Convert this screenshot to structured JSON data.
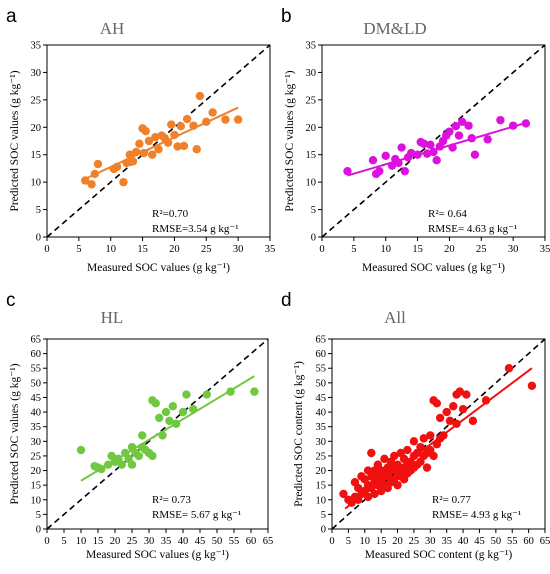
{
  "chart_data": [
    {
      "type": "scatter",
      "panel_letter": "a",
      "title": "AH",
      "xlabel": "Measured SOC values (g kg⁻¹)",
      "ylabel": "Predicted SOC values (g kg⁻¹)",
      "xlim": [
        0,
        35
      ],
      "ylim": [
        0,
        35
      ],
      "xticks": [
        "0",
        "5",
        "10",
        "15",
        "20",
        "25",
        "30",
        "35"
      ],
      "yticks": [
        "0",
        "5",
        "10",
        "15",
        "20",
        "25",
        "30",
        "35"
      ],
      "r2_text": "R²=0.70",
      "rmse_text": "RMSE=3.54 g kg⁻¹",
      "color": "#f0802a",
      "one_to_one": true,
      "fit_line": {
        "x": [
          6,
          30
        ],
        "y": [
          10.6,
          23.6
        ]
      },
      "points": [
        [
          6,
          10.3
        ],
        [
          7,
          9.6
        ],
        [
          7.5,
          11.5
        ],
        [
          8,
          13.3
        ],
        [
          10.5,
          12.4
        ],
        [
          11,
          12.8
        ],
        [
          12,
          10.0
        ],
        [
          12.5,
          13.5
        ],
        [
          13,
          15.0
        ],
        [
          13.5,
          13.8
        ],
        [
          14,
          15.5
        ],
        [
          14.5,
          17.0
        ],
        [
          15,
          19.8
        ],
        [
          15.2,
          15.3
        ],
        [
          15.5,
          19.3
        ],
        [
          16,
          17.5
        ],
        [
          16.5,
          15.0
        ],
        [
          17,
          18.2
        ],
        [
          17.5,
          16.0
        ],
        [
          18,
          18.5
        ],
        [
          18.5,
          18.0
        ],
        [
          19,
          17.2
        ],
        [
          19.5,
          20.5
        ],
        [
          20,
          18.6
        ],
        [
          20.5,
          16.5
        ],
        [
          21,
          20.2
        ],
        [
          21.5,
          16.6
        ],
        [
          22,
          21.5
        ],
        [
          23,
          20.3
        ],
        [
          23.5,
          16.0
        ],
        [
          24,
          25.7
        ],
        [
          25,
          21.0
        ],
        [
          26,
          22.7
        ],
        [
          28,
          21.4
        ],
        [
          30,
          21.4
        ]
      ]
    },
    {
      "type": "scatter",
      "panel_letter": "b",
      "title": "DM&LD",
      "xlabel": "Measured SOC values (g kg⁻¹)",
      "ylabel": "Predicted SOC values (g kg⁻¹)",
      "xlim": [
        0,
        35
      ],
      "ylim": [
        0,
        35
      ],
      "xticks": [
        "0",
        "5",
        "10",
        "15",
        "20",
        "25",
        "30",
        "35"
      ],
      "yticks": [
        "0",
        "5",
        "10",
        "15",
        "20",
        "25",
        "30",
        "35"
      ],
      "r2_text": "R²= 0.64",
      "rmse_text": "RMSE= 4.63 g kg⁻¹",
      "color": "#dd11dd",
      "one_to_one": true,
      "fit_line": {
        "x": [
          4,
          32
        ],
        "y": [
          11.2,
          20.8
        ]
      },
      "points": [
        [
          4,
          12.0
        ],
        [
          8,
          14.0
        ],
        [
          8.5,
          11.5
        ],
        [
          9,
          12.0
        ],
        [
          10,
          14.8
        ],
        [
          11,
          13.0
        ],
        [
          11.5,
          14.2
        ],
        [
          12,
          13.5
        ],
        [
          12.5,
          16.3
        ],
        [
          13,
          12.0
        ],
        [
          13.5,
          14.5
        ],
        [
          14,
          15.3
        ],
        [
          15,
          15.0
        ],
        [
          15.5,
          17.3
        ],
        [
          16,
          17.0
        ],
        [
          16.5,
          15.2
        ],
        [
          17,
          16.8
        ],
        [
          17.5,
          15.5
        ],
        [
          18,
          14.0
        ],
        [
          18.5,
          16.5
        ],
        [
          19,
          17.5
        ],
        [
          19.5,
          18.5
        ],
        [
          20,
          19.2
        ],
        [
          20.5,
          16.3
        ],
        [
          21,
          20.2
        ],
        [
          21.5,
          18.5
        ],
        [
          22,
          21.0
        ],
        [
          23,
          20.3
        ],
        [
          23.5,
          18.0
        ],
        [
          24,
          15.0
        ],
        [
          26,
          17.8
        ],
        [
          28,
          21.3
        ],
        [
          30,
          20.3
        ],
        [
          32,
          20.7
        ]
      ]
    },
    {
      "type": "scatter",
      "panel_letter": "c",
      "title": "HL",
      "xlabel": "Measured SOC values (g kg⁻¹)",
      "ylabel": "Predicted SOC values (g kg⁻¹)",
      "xlim": [
        0,
        65
      ],
      "ylim": [
        0,
        65
      ],
      "xticks": [
        "0",
        "5",
        "10",
        "15",
        "20",
        "25",
        "30",
        "35",
        "40",
        "45",
        "50",
        "55",
        "60",
        "65"
      ],
      "yticks": [
        "0",
        "5",
        "10",
        "15",
        "20",
        "25",
        "30",
        "35",
        "40",
        "45",
        "50",
        "55",
        "60",
        "65"
      ],
      "r2_text": "R²= 0.73",
      "rmse_text": "RMSE= 5.67 g kg⁻¹",
      "color": "#70c840",
      "one_to_one": true,
      "fit_line": {
        "x": [
          10,
          61
        ],
        "y": [
          16.5,
          52.3
        ]
      },
      "points": [
        [
          10,
          27
        ],
        [
          14,
          21.5
        ],
        [
          15,
          21
        ],
        [
          16,
          20.5
        ],
        [
          18,
          22
        ],
        [
          19,
          25
        ],
        [
          20,
          23
        ],
        [
          21,
          24
        ],
        [
          22,
          22
        ],
        [
          23,
          26
        ],
        [
          24,
          24
        ],
        [
          25,
          22
        ],
        [
          25,
          28
        ],
        [
          26,
          26
        ],
        [
          27,
          25
        ],
        [
          28,
          32
        ],
        [
          28,
          28
        ],
        [
          29,
          27
        ],
        [
          30,
          26
        ],
        [
          31,
          25
        ],
        [
          31,
          44
        ],
        [
          32,
          43
        ],
        [
          33,
          38
        ],
        [
          34,
          32
        ],
        [
          35,
          40
        ],
        [
          36,
          37
        ],
        [
          37,
          42
        ],
        [
          38,
          36
        ],
        [
          40,
          40
        ],
        [
          41,
          46
        ],
        [
          43,
          41
        ],
        [
          47,
          46
        ],
        [
          54,
          47
        ],
        [
          61,
          47
        ]
      ]
    },
    {
      "type": "scatter",
      "panel_letter": "d",
      "title": "All",
      "xlabel": "Measured SOC content (g kg⁻¹)",
      "ylabel": "Predicted SOC content (g kg⁻¹)",
      "xlim": [
        0,
        65
      ],
      "ylim": [
        0,
        65
      ],
      "xticks": [
        "0",
        "5",
        "10",
        "15",
        "20",
        "25",
        "30",
        "35",
        "40",
        "45",
        "50",
        "55",
        "60",
        "65"
      ],
      "yticks": [
        "0",
        "5",
        "10",
        "15",
        "20",
        "25",
        "30",
        "35",
        "40",
        "45",
        "50",
        "55",
        "60",
        "65"
      ],
      "r2_text": "R²= 0.77",
      "rmse_text": "RMSE= 4.93 g kg⁻¹",
      "color": "#f01010",
      "one_to_one": true,
      "fit_line": {
        "x": [
          4,
          61
        ],
        "y": [
          7.0,
          55.0
        ]
      },
      "points": [
        [
          3.5,
          12
        ],
        [
          5,
          10
        ],
        [
          6,
          9
        ],
        [
          7,
          11
        ],
        [
          7,
          16
        ],
        [
          8,
          10
        ],
        [
          8,
          14
        ],
        [
          9,
          12
        ],
        [
          9,
          18
        ],
        [
          10,
          13
        ],
        [
          10,
          17
        ],
        [
          11,
          11
        ],
        [
          11,
          15
        ],
        [
          11,
          20
        ],
        [
          12,
          14
        ],
        [
          12,
          18
        ],
        [
          12,
          26
        ],
        [
          13,
          12
        ],
        [
          13,
          16
        ],
        [
          13,
          20
        ],
        [
          14,
          15
        ],
        [
          14,
          18
        ],
        [
          14,
          22
        ],
        [
          15,
          13
        ],
        [
          15,
          17
        ],
        [
          15,
          20
        ],
        [
          16,
          15
        ],
        [
          16,
          19
        ],
        [
          16,
          24
        ],
        [
          17,
          14
        ],
        [
          17,
          18
        ],
        [
          17,
          21
        ],
        [
          18,
          16
        ],
        [
          18,
          20
        ],
        [
          18,
          23
        ],
        [
          19,
          17
        ],
        [
          19,
          21
        ],
        [
          19,
          25
        ],
        [
          20,
          15
        ],
        [
          20,
          19
        ],
        [
          20,
          22
        ],
        [
          21,
          18
        ],
        [
          21,
          20
        ],
        [
          21,
          26
        ],
        [
          22,
          17
        ],
        [
          22,
          21
        ],
        [
          22,
          24
        ],
        [
          23,
          19
        ],
        [
          23,
          22
        ],
        [
          23,
          27
        ],
        [
          24,
          20
        ],
        [
          24,
          23
        ],
        [
          25,
          21
        ],
        [
          25,
          25
        ],
        [
          25,
          30
        ],
        [
          26,
          22
        ],
        [
          26,
          26
        ],
        [
          27,
          23
        ],
        [
          27,
          28
        ],
        [
          28,
          25
        ],
        [
          28,
          31
        ],
        [
          29,
          26
        ],
        [
          29,
          21
        ],
        [
          30,
          27
        ],
        [
          30,
          32
        ],
        [
          31,
          25
        ],
        [
          31,
          44
        ],
        [
          32,
          29
        ],
        [
          32,
          43
        ],
        [
          33,
          38
        ],
        [
          33,
          31
        ],
        [
          34,
          32
        ],
        [
          35,
          40
        ],
        [
          36,
          37
        ],
        [
          37,
          42
        ],
        [
          38,
          46
        ],
        [
          38,
          36
        ],
        [
          39,
          47
        ],
        [
          40,
          41
        ],
        [
          41,
          46
        ],
        [
          43,
          37
        ],
        [
          47,
          44
        ],
        [
          54,
          55
        ],
        [
          61,
          49
        ]
      ]
    }
  ]
}
